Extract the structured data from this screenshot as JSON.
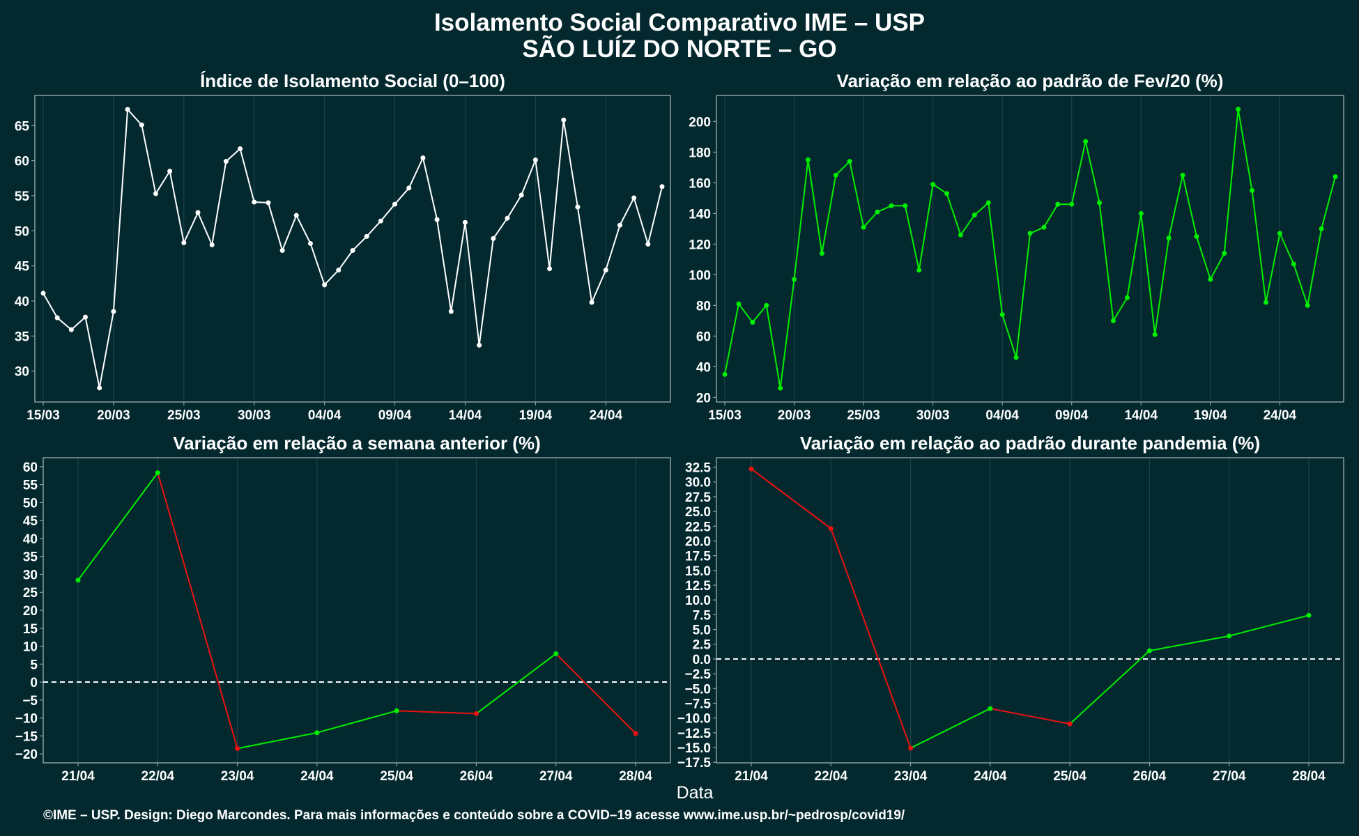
{
  "title": "Isolamento Social Comparativo IME – USP",
  "subtitle": "SÃO LUÍZ DO NORTE – GO",
  "xlabel": "Data",
  "footer": "©IME – USP. Design: Diego Marcondes. Para mais informações e conteúdo sobre a COVID–19 acesse www.ime.usp.br/~pedrosp/covid19/",
  "colors": {
    "background": "#03292f",
    "white_line": "#ffffff",
    "positive": "#00ee00",
    "negative": "#ee1111",
    "axis": "#8a9ea2",
    "grid": "#1c434a"
  },
  "chart_data": [
    {
      "id": "indice",
      "type": "line",
      "title": "Índice de Isolamento Social (0–100)",
      "x": [
        "15/03",
        "16/03",
        "17/03",
        "18/03",
        "19/03",
        "20/03",
        "21/03",
        "22/03",
        "23/03",
        "24/03",
        "25/03",
        "26/03",
        "27/03",
        "28/03",
        "29/03",
        "30/03",
        "31/03",
        "01/04",
        "02/04",
        "03/04",
        "04/04",
        "05/04",
        "06/04",
        "07/04",
        "08/04",
        "09/04",
        "10/04",
        "11/04",
        "12/04",
        "13/04",
        "14/04",
        "15/04",
        "16/04",
        "17/04",
        "18/04",
        "19/04",
        "20/04",
        "21/04",
        "22/04",
        "23/04",
        "24/04",
        "25/04",
        "26/04",
        "27/04",
        "28/04"
      ],
      "series": [
        {
          "values": [
            41.1,
            37.6,
            35.9,
            37.7,
            27.6,
            38.5,
            67.3,
            65.1,
            55.3,
            58.5,
            48.3,
            52.6,
            48.0,
            59.9,
            61.7,
            54.1,
            54.0,
            47.2,
            52.2,
            48.2,
            42.3,
            44.4,
            47.2,
            49.2,
            51.4,
            53.8,
            56.1,
            60.4,
            51.6,
            38.5,
            51.2,
            33.7,
            48.9,
            51.8,
            55.1,
            60.1,
            44.6,
            65.8,
            53.4,
            39.8,
            44.4,
            50.8,
            54.7,
            48.1,
            56.3
          ]
        }
      ],
      "color_mode": "white",
      "x_ticks": [
        "15/03",
        "20/03",
        "25/03",
        "30/03",
        "04/04",
        "09/04",
        "14/04",
        "19/04",
        "24/04"
      ],
      "y_ticks": [
        30,
        35,
        40,
        45,
        50,
        55,
        60,
        65
      ],
      "ylim": [
        25.6,
        69.3
      ]
    },
    {
      "id": "fev20",
      "type": "line",
      "title": "Variação em relação ao padrão de Fev/20 (%)",
      "x": [
        "15/03",
        "16/03",
        "17/03",
        "18/03",
        "19/03",
        "20/03",
        "21/03",
        "22/03",
        "23/03",
        "24/03",
        "25/03",
        "26/03",
        "27/03",
        "28/03",
        "29/03",
        "30/03",
        "31/03",
        "01/04",
        "02/04",
        "03/04",
        "04/04",
        "05/04",
        "06/04",
        "07/04",
        "08/04",
        "09/04",
        "10/04",
        "11/04",
        "12/04",
        "13/04",
        "14/04",
        "15/04",
        "16/04",
        "17/04",
        "18/04",
        "19/04",
        "20/04",
        "21/04",
        "22/04",
        "23/04",
        "24/04",
        "25/04",
        "26/04",
        "27/04",
        "28/04"
      ],
      "series": [
        {
          "values": [
            35,
            81,
            69,
            80,
            26,
            97,
            175,
            114,
            165,
            174,
            131,
            141,
            145,
            145,
            103,
            159,
            153,
            126,
            139,
            147,
            74,
            46,
            127,
            131,
            146,
            146,
            187,
            147,
            70,
            85,
            140,
            61,
            124,
            165,
            125,
            97,
            114,
            208,
            155,
            82,
            127,
            107,
            80,
            130,
            164
          ]
        }
      ],
      "color_mode": "green",
      "x_ticks": [
        "15/03",
        "20/03",
        "25/03",
        "30/03",
        "04/04",
        "09/04",
        "14/04",
        "19/04",
        "24/04"
      ],
      "y_ticks": [
        20,
        40,
        60,
        80,
        100,
        120,
        140,
        160,
        180,
        200
      ],
      "ylim": [
        17,
        217
      ]
    },
    {
      "id": "semana",
      "type": "line",
      "title": "Variação em relação a semana anterior (%)",
      "x": [
        "21/04",
        "22/04",
        "23/04",
        "24/04",
        "25/04",
        "26/04",
        "27/04",
        "28/04"
      ],
      "series": [
        {
          "values": [
            28.4,
            58.3,
            -18.5,
            -14.1,
            -8.0,
            -8.8,
            7.9,
            -14.3
          ]
        }
      ],
      "color_mode": "sign",
      "x_ticks": [
        "21/04",
        "22/04",
        "23/04",
        "24/04",
        "25/04",
        "26/04",
        "27/04",
        "28/04"
      ],
      "y_ticks": [
        -20,
        -15,
        -10,
        -5,
        0,
        5,
        10,
        15,
        20,
        25,
        30,
        35,
        40,
        45,
        50,
        55,
        60
      ],
      "ylim": [
        -22.5,
        62.5
      ],
      "zero_line": true
    },
    {
      "id": "pandemia",
      "type": "line",
      "title": "Variação em relação ao padrão durante pandemia (%)",
      "x": [
        "21/04",
        "22/04",
        "23/04",
        "24/04",
        "25/04",
        "26/04",
        "27/04",
        "28/04"
      ],
      "series": [
        {
          "values": [
            32.2,
            22.1,
            -15.1,
            -8.4,
            -11.0,
            1.4,
            3.9,
            7.4
          ]
        }
      ],
      "color_mode": "sign",
      "x_ticks": [
        "21/04",
        "22/04",
        "23/04",
        "24/04",
        "25/04",
        "26/04",
        "27/04",
        "28/04"
      ],
      "y_ticks": [
        -17.5,
        -15.0,
        -12.5,
        -10.0,
        -7.5,
        -5.0,
        -2.5,
        0.0,
        2.5,
        5.0,
        7.5,
        10.0,
        12.5,
        15.0,
        17.5,
        20.0,
        22.5,
        25.0,
        27.5,
        30.0,
        32.5
      ],
      "y_tick_decimals": 1,
      "ylim": [
        -17.6,
        34.1
      ],
      "zero_line": true
    }
  ]
}
